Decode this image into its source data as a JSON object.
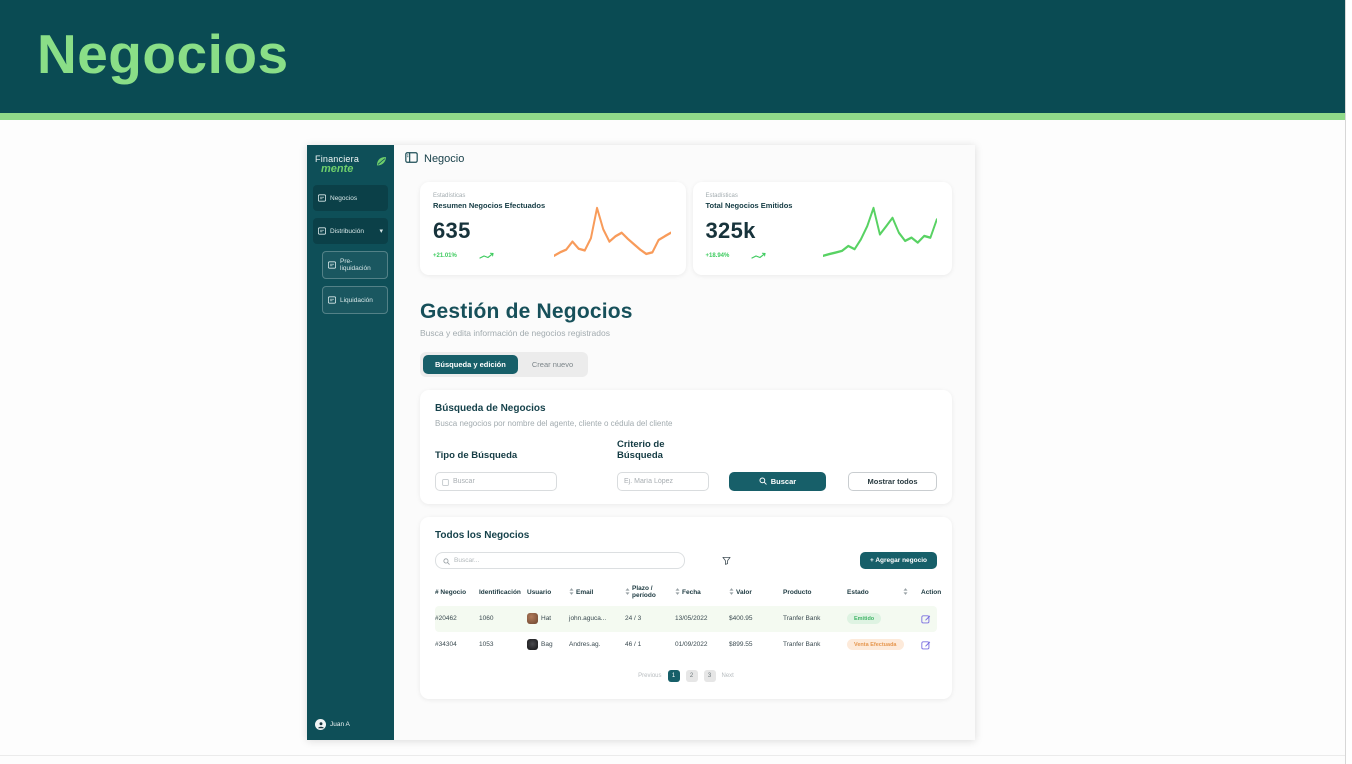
{
  "banner": {
    "title": "Negocios"
  },
  "app": {
    "sidebar": {
      "logo": {
        "line1": "Financiera",
        "line2": "mente"
      },
      "items": [
        {
          "label": "Negocios"
        },
        {
          "label": "Distribución"
        }
      ],
      "subitems": [
        {
          "label": "Pre-liquidación"
        },
        {
          "label": "Liquidación"
        }
      ],
      "user": {
        "name": "Juan A"
      }
    },
    "topbar": {
      "title": "Negocio"
    },
    "stats": [
      {
        "eyebrow": "Estadísticas",
        "title": "Resumen Negocios Efectuados",
        "value": "635",
        "delta": "+21.01%",
        "spark": {
          "color": "#f89b5a",
          "values": [
            8,
            12,
            15,
            24,
            16,
            14,
            28,
            62,
            38,
            24,
            30,
            34,
            27,
            21,
            15,
            10,
            12,
            26,
            30,
            34
          ]
        }
      },
      {
        "eyebrow": "Estadísticas",
        "title": "Total Negocios Emitidos",
        "value": "325k",
        "delta": "+18.94%",
        "spark": {
          "color": "#58d263",
          "values": [
            4,
            6,
            8,
            10,
            16,
            12,
            24,
            40,
            62,
            30,
            40,
            50,
            32,
            22,
            26,
            20,
            28,
            26,
            48
          ]
        }
      }
    ],
    "section": {
      "title": "Gestión de Negocios",
      "subtitle": "Busca y edita información de negocios registrados"
    },
    "tabs": [
      {
        "label": "Búsqueda y edición"
      },
      {
        "label": "Crear nuevo"
      }
    ],
    "search_card": {
      "title": "Búsqueda de Negocios",
      "subtitle": "Busca negocios por nombre del agente, cliente o cédula del cliente",
      "type_label": "Tipo de Búsqueda",
      "type_placeholder": "Buscar",
      "criteria_label": "Criterio de Búsqueda",
      "criteria_placeholder": "Ej. María López",
      "search_button": "Buscar",
      "show_all_button": "Mostrar todos"
    },
    "table_card": {
      "title": "Todos los Negocios",
      "search_placeholder": "Buscar...",
      "add_button": "+ Agregar negocio",
      "columns": [
        "# Negocio",
        "Identificación",
        "Usuario",
        "Email",
        "Plazo / período",
        "Fecha",
        "Valor",
        "Producto",
        "Estado",
        "Action"
      ],
      "rows": [
        {
          "negocio": "#20462",
          "id": "1060",
          "usuario": "Hat",
          "email": "john.aguca...",
          "plazo": "24 / 3",
          "fecha": "13/05/2022",
          "valor": "$400.95",
          "producto": "Tranfer Bank",
          "estado": "Emitido"
        },
        {
          "negocio": "#34304",
          "id": "1053",
          "usuario": "Bag",
          "email": "Andres.ag.",
          "plazo": "46 / 1",
          "fecha": "01/09/2022",
          "valor": "$899.55",
          "producto": "Tranfer Bank",
          "estado": "Venta Efectuada"
        }
      ],
      "pagination": {
        "prev": "Previous",
        "pages": [
          "1",
          "2",
          "3"
        ],
        "next": "Next"
      }
    }
  }
}
